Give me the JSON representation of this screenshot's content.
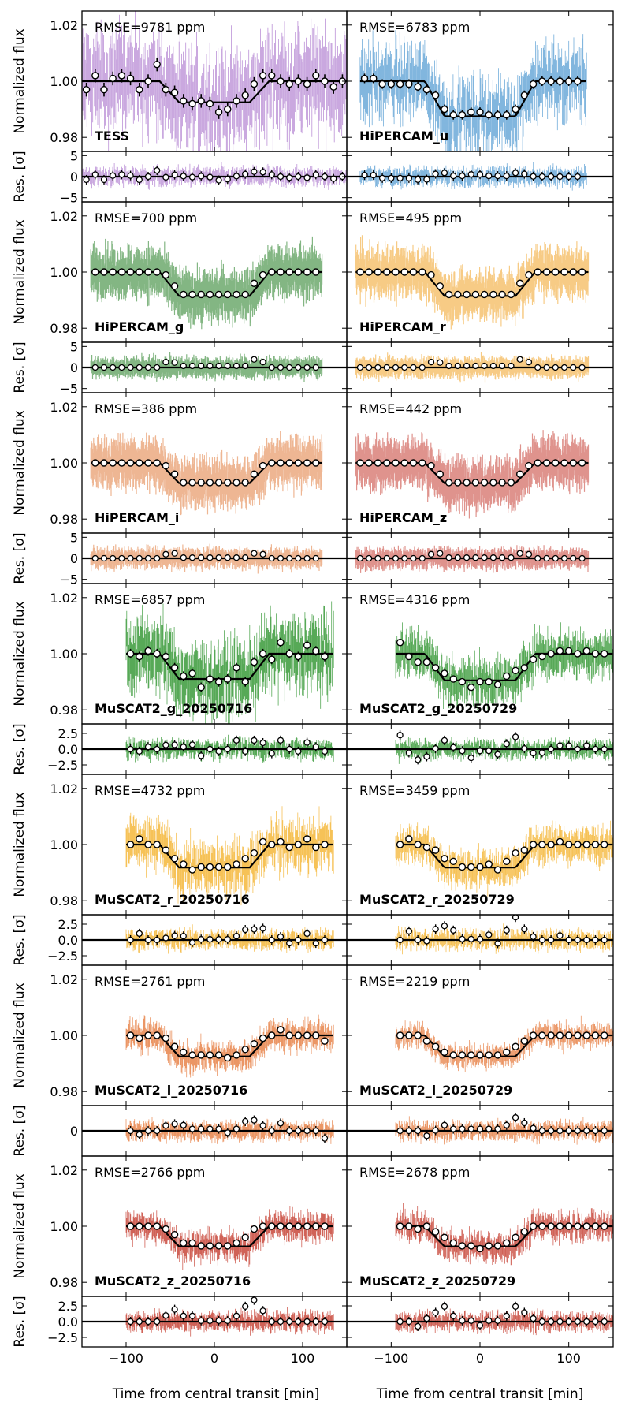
{
  "figure": {
    "xlabel": "Time from central transit [min]",
    "flux_ylabel": "Normalized flux",
    "res_ylabel": "Res. [σ]",
    "x_range": [
      -150,
      150
    ],
    "x_ticks": [
      -100,
      0,
      100
    ],
    "x_ticklabels": [
      "−100",
      "0",
      "100"
    ],
    "flux_range": [
      0.975,
      1.025
    ],
    "flux_ticks": [
      0.98,
      1.0,
      1.02
    ],
    "flux_ticklabels": [
      "0.98",
      "1.00",
      "1.02"
    ]
  },
  "chart_data": [
    {
      "type": "scatter",
      "row": 0,
      "col": 0,
      "name": "TESS",
      "rmse": "RMSE=9781 ppm",
      "color": "#b07fd0",
      "t_start": -150,
      "t_end": 150,
      "depth": 0.0075,
      "res_ticks": [
        -5,
        0,
        5
      ],
      "res_ticklabels": [
        "−5",
        "0",
        "5"
      ],
      "res_range": [
        -6,
        6
      ],
      "binned_x": [
        -145,
        -135,
        -125,
        -115,
        -105,
        -95,
        -85,
        -75,
        -65,
        -55,
        -45,
        -35,
        -25,
        -15,
        -5,
        5,
        15,
        25,
        35,
        45,
        55,
        65,
        75,
        85,
        95,
        105,
        115,
        125,
        135,
        145
      ],
      "binned_y": [
        0.997,
        1.002,
        0.997,
        1.001,
        1.002,
        1.001,
        0.997,
        1.0,
        1.006,
        0.997,
        0.996,
        0.993,
        0.992,
        0.993,
        0.992,
        0.989,
        0.99,
        0.993,
        0.995,
        0.999,
        1.002,
        1.002,
        1.0,
        0.999,
        1.0,
        0.999,
        1.002,
        1.0,
        0.998,
        1.0
      ]
    },
    {
      "type": "scatter",
      "row": 0,
      "col": 1,
      "name": "HiPERCAM_u",
      "rmse": "RMSE=6783 ppm",
      "color": "#5a9fd4",
      "t_start": -135,
      "t_end": 120,
      "depth": 0.0125,
      "res_ticks": [
        -5,
        0,
        5
      ],
      "res_ticklabels": [
        "−5",
        "0",
        "5"
      ],
      "res_range": [
        -6,
        6
      ],
      "binned_x": [
        -130,
        -120,
        -110,
        -100,
        -90,
        -80,
        -70,
        -60,
        -50,
        -40,
        -30,
        -20,
        -10,
        0,
        10,
        20,
        30,
        40,
        50,
        60,
        70,
        80,
        90,
        100,
        110
      ],
      "binned_y": [
        1.001,
        1.001,
        0.999,
        0.999,
        0.999,
        0.999,
        0.998,
        0.997,
        0.995,
        0.99,
        0.988,
        0.988,
        0.989,
        0.989,
        0.988,
        0.988,
        0.988,
        0.99,
        0.995,
        0.999,
        1.0,
        1.0,
        1.0,
        1.0,
        1.0
      ]
    },
    {
      "type": "scatter",
      "row": 1,
      "col": 0,
      "name": "HiPERCAM_g",
      "rmse": "RMSE=700 ppm",
      "color": "#1e7a1e",
      "t_start": -140,
      "t_end": 122,
      "depth": 0.0085,
      "res_ticks": [
        -5,
        0,
        5
      ],
      "res_ticklabels": [
        "−5",
        "0",
        "5"
      ],
      "res_range": [
        -6,
        6
      ],
      "binned_x": [
        -135,
        -125,
        -115,
        -105,
        -95,
        -85,
        -75,
        -65,
        -55,
        -45,
        -35,
        -25,
        -15,
        -5,
        5,
        15,
        25,
        35,
        45,
        55,
        65,
        75,
        85,
        95,
        105,
        115
      ],
      "binned_y": [
        1.0,
        1.0,
        1.0,
        1.0,
        1.0,
        1.0,
        1.0,
        1.0,
        0.999,
        0.995,
        0.992,
        0.992,
        0.992,
        0.992,
        0.992,
        0.992,
        0.992,
        0.992,
        0.996,
        0.999,
        1.0,
        1.0,
        1.0,
        1.0,
        1.0,
        1.0
      ]
    },
    {
      "type": "scatter",
      "row": 1,
      "col": 1,
      "name": "HiPERCAM_r",
      "rmse": "RMSE=495 ppm",
      "color": "#f0a020",
      "t_start": -140,
      "t_end": 122,
      "depth": 0.0085,
      "res_ticks": [
        -5,
        0,
        5
      ],
      "res_ticklabels": [
        "−5",
        "0",
        "5"
      ],
      "res_range": [
        -6,
        6
      ],
      "binned_x": [
        -135,
        -125,
        -115,
        -105,
        -95,
        -85,
        -75,
        -65,
        -55,
        -45,
        -35,
        -25,
        -15,
        -5,
        5,
        15,
        25,
        35,
        45,
        55,
        65,
        75,
        85,
        95,
        105,
        115
      ],
      "binned_y": [
        1.0,
        1.0,
        1.0,
        1.0,
        1.0,
        1.0,
        1.0,
        1.0,
        0.999,
        0.995,
        0.992,
        0.992,
        0.992,
        0.992,
        0.992,
        0.992,
        0.992,
        0.992,
        0.996,
        0.999,
        1.0,
        1.0,
        1.0,
        1.0,
        1.0,
        1.0
      ]
    },
    {
      "type": "scatter",
      "row": 2,
      "col": 0,
      "name": "HiPERCAM_i",
      "rmse": "RMSE=386 ppm",
      "color": "#e07a3a",
      "t_start": -140,
      "t_end": 122,
      "depth": 0.0072,
      "res_ticks": [
        -5,
        0,
        5
      ],
      "res_ticklabels": [
        "−5",
        "0",
        "5"
      ],
      "res_range": [
        -6,
        6
      ],
      "binned_x": [
        -135,
        -125,
        -115,
        -105,
        -95,
        -85,
        -75,
        -65,
        -55,
        -45,
        -35,
        -25,
        -15,
        -5,
        5,
        15,
        25,
        35,
        45,
        55,
        65,
        75,
        85,
        95,
        105,
        115
      ],
      "binned_y": [
        1.0,
        1.0,
        1.0,
        1.0,
        1.0,
        1.0,
        1.0,
        1.0,
        0.999,
        0.996,
        0.993,
        0.993,
        0.993,
        0.993,
        0.993,
        0.993,
        0.993,
        0.993,
        0.996,
        0.999,
        1.0,
        1.0,
        1.0,
        1.0,
        1.0,
        1.0
      ]
    },
    {
      "type": "scatter",
      "row": 2,
      "col": 1,
      "name": "HiPERCAM_z",
      "rmse": "RMSE=442 ppm",
      "color": "#c43a30",
      "t_start": -140,
      "t_end": 122,
      "depth": 0.0072,
      "res_ticks": [
        -5,
        0,
        5
      ],
      "res_ticklabels": [
        "−5",
        "0",
        "5"
      ],
      "res_range": [
        -6,
        6
      ],
      "binned_x": [
        -135,
        -125,
        -115,
        -105,
        -95,
        -85,
        -75,
        -65,
        -55,
        -45,
        -35,
        -25,
        -15,
        -5,
        5,
        15,
        25,
        35,
        45,
        55,
        65,
        75,
        85,
        95,
        105,
        115
      ],
      "binned_y": [
        1.0,
        1.0,
        1.0,
        1.0,
        1.0,
        1.0,
        1.0,
        1.0,
        0.999,
        0.996,
        0.993,
        0.993,
        0.993,
        0.993,
        0.993,
        0.993,
        0.993,
        0.993,
        0.996,
        0.999,
        1.0,
        1.0,
        1.0,
        1.0,
        1.0,
        1.0
      ]
    },
    {
      "type": "scatter",
      "row": 3,
      "col": 0,
      "name": "MuSCAT2_g_20250716",
      "rmse": "RMSE=6857 ppm",
      "color": "#3a9a3a",
      "t_start": -100,
      "t_end": 135,
      "depth": 0.009,
      "res_ticks": [
        -2.5,
        0,
        2.5
      ],
      "res_ticklabels": [
        "−2.5",
        "0.0",
        "2.5"
      ],
      "res_range": [
        -4,
        4
      ],
      "binned_x": [
        -95,
        -85,
        -75,
        -65,
        -55,
        -45,
        -35,
        -25,
        -15,
        -5,
        5,
        15,
        25,
        35,
        45,
        55,
        65,
        75,
        85,
        95,
        105,
        115,
        125
      ],
      "binned_y": [
        1.0,
        0.999,
        1.001,
        1.0,
        0.999,
        0.995,
        0.992,
        0.993,
        0.988,
        0.991,
        0.99,
        0.991,
        0.995,
        0.99,
        0.997,
        1.0,
        0.998,
        1.004,
        1.0,
        0.999,
        1.003,
        1.001,
        0.999
      ]
    },
    {
      "type": "scatter",
      "row": 3,
      "col": 1,
      "name": "MuSCAT2_g_20250729",
      "rmse": "RMSE=4316 ppm",
      "color": "#3a9a3a",
      "t_start": -95,
      "t_end": 150,
      "depth": 0.0095,
      "res_ticks": [
        -2.5,
        0,
        2.5
      ],
      "res_ticklabels": [
        "−2.5",
        "0.0",
        "2.5"
      ],
      "res_range": [
        -4,
        4
      ],
      "binned_x": [
        -90,
        -80,
        -70,
        -60,
        -50,
        -40,
        -30,
        -20,
        -10,
        0,
        10,
        20,
        30,
        40,
        50,
        60,
        70,
        80,
        90,
        100,
        110,
        120,
        130,
        140
      ],
      "binned_y": [
        1.004,
        0.999,
        0.997,
        0.997,
        0.995,
        0.993,
        0.991,
        0.99,
        0.988,
        0.99,
        0.99,
        0.989,
        0.992,
        0.994,
        0.995,
        0.998,
        0.999,
        1.0,
        1.001,
        1.001,
        1.0,
        1.001,
        1.0,
        1.0
      ]
    },
    {
      "type": "scatter",
      "row": 4,
      "col": 0,
      "name": "MuSCAT2_r_20250716",
      "rmse": "RMSE=4732 ppm",
      "color": "#f5b73a",
      "t_start": -100,
      "t_end": 135,
      "depth": 0.0082,
      "res_ticks": [
        -2.5,
        0,
        2.5
      ],
      "res_ticklabels": [
        "−2.5",
        "0.0",
        "2.5"
      ],
      "res_range": [
        -4,
        4
      ],
      "binned_x": [
        -95,
        -85,
        -75,
        -65,
        -55,
        -45,
        -35,
        -25,
        -15,
        -5,
        5,
        15,
        25,
        35,
        45,
        55,
        65,
        75,
        85,
        95,
        105,
        115,
        125
      ],
      "binned_y": [
        1.0,
        1.002,
        1.0,
        1.0,
        0.998,
        0.995,
        0.993,
        0.991,
        0.992,
        0.992,
        0.992,
        0.992,
        0.993,
        0.995,
        0.997,
        1.001,
        1.0,
        1.001,
        0.999,
        1.0,
        1.002,
        0.999,
        1.0
      ]
    },
    {
      "type": "scatter",
      "row": 4,
      "col": 1,
      "name": "MuSCAT2_r_20250729",
      "rmse": "RMSE=3459 ppm",
      "color": "#f5b73a",
      "t_start": -95,
      "t_end": 150,
      "depth": 0.0082,
      "res_ticks": [
        -2.5,
        0,
        2.5
      ],
      "res_ticklabels": [
        "−2.5",
        "0.0",
        "2.5"
      ],
      "res_range": [
        -4,
        4
      ],
      "binned_x": [
        -90,
        -80,
        -70,
        -60,
        -50,
        -40,
        -30,
        -20,
        -10,
        0,
        10,
        20,
        30,
        40,
        50,
        60,
        70,
        80,
        90,
        100,
        110,
        120,
        130,
        140
      ],
      "binned_y": [
        1.0,
        1.002,
        1.0,
        0.999,
        0.998,
        0.995,
        0.994,
        0.992,
        0.992,
        0.992,
        0.993,
        0.991,
        0.994,
        0.997,
        0.998,
        1.0,
        1.0,
        1.0,
        1.001,
        1.0,
        1.0,
        1.0,
        1.0,
        1.0
      ]
    },
    {
      "type": "scatter",
      "row": 5,
      "col": 0,
      "name": "MuSCAT2_i_20250716",
      "rmse": "RMSE=2761 ppm",
      "color": "#e8844a",
      "t_start": -100,
      "t_end": 135,
      "depth": 0.0075,
      "res_ticks": [
        0
      ],
      "res_ticklabels": [
        "0"
      ],
      "res_range": [
        -5,
        5
      ],
      "binned_x": [
        -95,
        -85,
        -75,
        -65,
        -55,
        -45,
        -35,
        -25,
        -15,
        -5,
        5,
        15,
        25,
        35,
        45,
        55,
        65,
        75,
        85,
        95,
        105,
        115,
        125
      ],
      "binned_y": [
        1.0,
        0.999,
        1.0,
        1.0,
        0.999,
        0.996,
        0.994,
        0.993,
        0.993,
        0.993,
        0.993,
        0.992,
        0.993,
        0.995,
        0.997,
        0.999,
        1.0,
        1.002,
        1.0,
        1.0,
        1.0,
        1.0,
        0.998
      ]
    },
    {
      "type": "scatter",
      "row": 5,
      "col": 1,
      "name": "MuSCAT2_i_20250729",
      "rmse": "RMSE=2219 ppm",
      "color": "#e8844a",
      "t_start": -95,
      "t_end": 150,
      "depth": 0.0075,
      "res_ticks": [
        0
      ],
      "res_ticklabels": [
        "0"
      ],
      "res_range": [
        -5,
        5
      ],
      "binned_x": [
        -90,
        -80,
        -70,
        -60,
        -50,
        -40,
        -30,
        -20,
        -10,
        0,
        10,
        20,
        30,
        40,
        50,
        60,
        70,
        80,
        90,
        100,
        110,
        120,
        130,
        140
      ],
      "binned_y": [
        1.0,
        1.0,
        1.0,
        0.998,
        0.996,
        0.994,
        0.993,
        0.993,
        0.993,
        0.993,
        0.993,
        0.993,
        0.994,
        0.996,
        0.998,
        1.0,
        1.0,
        1.0,
        1.0,
        1.0,
        1.0,
        1.0,
        1.0,
        1.0
      ]
    },
    {
      "type": "scatter",
      "row": 6,
      "col": 0,
      "name": "MuSCAT2_z_20250716",
      "rmse": "RMSE=2766 ppm",
      "color": "#c8463a",
      "t_start": -100,
      "t_end": 135,
      "depth": 0.0072,
      "res_ticks": [
        -2.5,
        0,
        2.5
      ],
      "res_ticklabels": [
        "−2.5",
        "0.0",
        "2.5"
      ],
      "res_range": [
        -4,
        4
      ],
      "binned_x": [
        -95,
        -85,
        -75,
        -65,
        -55,
        -45,
        -35,
        -25,
        -15,
        -5,
        5,
        15,
        25,
        35,
        45,
        55,
        65,
        75,
        85,
        95,
        105,
        115,
        125
      ],
      "binned_y": [
        1.0,
        1.0,
        1.0,
        1.0,
        0.999,
        0.997,
        0.994,
        0.994,
        0.993,
        0.993,
        0.993,
        0.993,
        0.994,
        0.996,
        0.999,
        1.0,
        1.0,
        1.0,
        1.0,
        1.0,
        1.0,
        1.0,
        1.0
      ]
    },
    {
      "type": "scatter",
      "row": 6,
      "col": 1,
      "name": "MuSCAT2_z_20250729",
      "rmse": "RMSE=2678 ppm",
      "color": "#c8463a",
      "t_start": -95,
      "t_end": 150,
      "depth": 0.0072,
      "res_ticks": [
        -2.5,
        0,
        2.5
      ],
      "res_ticklabels": [
        "−2.5",
        "0.0",
        "2.5"
      ],
      "res_range": [
        -4,
        4
      ],
      "binned_x": [
        -90,
        -80,
        -70,
        -60,
        -50,
        -40,
        -30,
        -20,
        -10,
        0,
        10,
        20,
        30,
        40,
        50,
        60,
        70,
        80,
        90,
        100,
        110,
        120,
        130,
        140
      ],
      "binned_y": [
        1.0,
        1.0,
        0.999,
        1.0,
        0.998,
        0.996,
        0.994,
        0.993,
        0.993,
        0.992,
        0.993,
        0.993,
        0.994,
        0.996,
        0.998,
        1.0,
        1.0,
        1.0,
        1.0,
        1.0,
        1.0,
        1.0,
        1.0,
        1.0
      ]
    }
  ]
}
